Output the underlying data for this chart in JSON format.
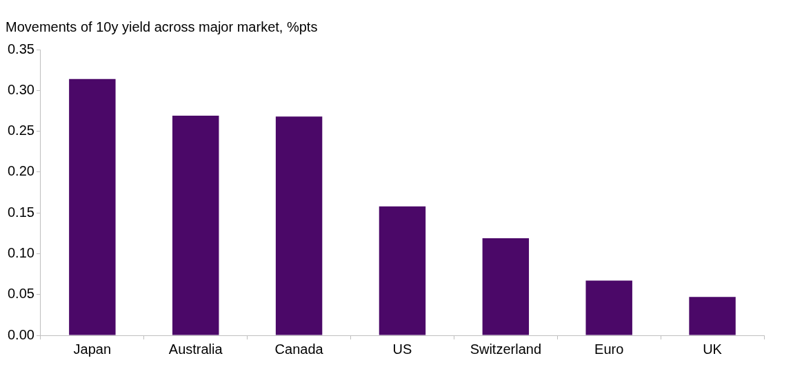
{
  "chart_data": {
    "type": "bar",
    "title": "Movements of 10y yield across major market, %pts",
    "categories": [
      "Japan",
      "Australia",
      "Canada",
      "US",
      "Switzerland",
      "Euro",
      "UK"
    ],
    "values": [
      0.314,
      0.269,
      0.268,
      0.158,
      0.119,
      0.067,
      0.047
    ],
    "color": "#4b0868",
    "ylim": [
      0,
      0.35
    ],
    "yticks": [
      {
        "value": 0,
        "label": "0.00"
      },
      {
        "value": 0.05,
        "label": "0.05"
      },
      {
        "value": 0.1,
        "label": "0.10"
      },
      {
        "value": 0.15,
        "label": "0.15"
      },
      {
        "value": 0.2,
        "label": "0.20"
      },
      {
        "value": 0.25,
        "label": "0.25"
      },
      {
        "value": 0.3,
        "label": "0.30"
      },
      {
        "value": 0.35,
        "label": "0.35"
      }
    ],
    "grid": false,
    "legend": false
  }
}
